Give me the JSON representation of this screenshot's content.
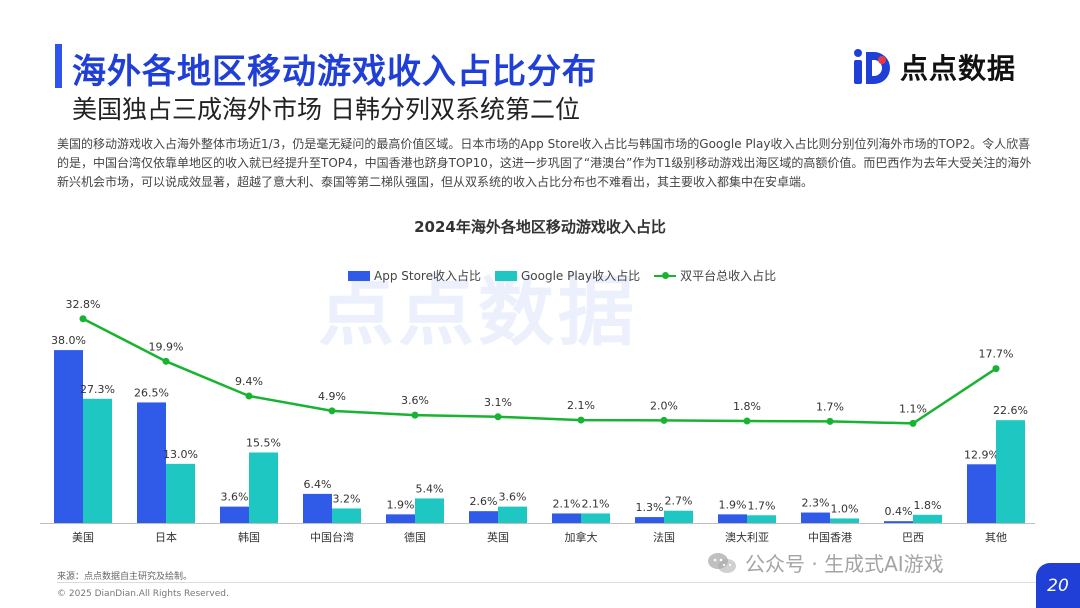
{
  "header": {
    "title": "海外各地区移动游戏收入占比分布",
    "subtitle": "美国独占三成海外市场 日韩分列双系统第二位",
    "brand_name": "点点数据"
  },
  "intro_text": "美国的移动游戏收入占海外整体市场近1/3，仍是毫无疑问的最高价值区域。日本市场的App Store收入占比与韩国市场的Google Play收入占比则分别位列海外市场的TOP2。令人欣喜的是，中国台湾仅依靠单地区的收入就已经提升至TOP4，中国香港也跻身TOP10，这进一步巩固了“港澳台”作为T1级别移动游戏出海区域的高额价值。而巴西作为去年大受关注的海外新兴机会市场，可以说成效显著，超越了意大利、泰国等第二梯队强国，但从双系统的收入占比分布也不难看出，其主要收入都集中在安卓端。",
  "watermark_text": "点点数据",
  "chart_data": {
    "type": "bar",
    "title": "2024年海外各地区移动游戏收入占比",
    "categories": [
      "美国",
      "日本",
      "韩国",
      "中国台湾",
      "德国",
      "英国",
      "加拿大",
      "法国",
      "澳大利亚",
      "中国香港",
      "巴西",
      "其他"
    ],
    "series": [
      {
        "name": "App Store收入占比",
        "type": "bar",
        "values": [
          38.0,
          26.5,
          3.6,
          6.4,
          1.9,
          2.6,
          2.1,
          1.3,
          1.9,
          2.3,
          0.4,
          12.9
        ],
        "color": "#2f5be8"
      },
      {
        "name": "Google Play收入占比",
        "type": "bar",
        "values": [
          27.3,
          13.0,
          15.5,
          3.2,
          5.4,
          3.6,
          2.1,
          2.7,
          1.7,
          1.0,
          1.8,
          22.6
        ],
        "color": "#1fc7c3"
      },
      {
        "name": "双平台总收入占比",
        "type": "line",
        "values": [
          32.8,
          19.9,
          9.4,
          4.9,
          3.6,
          3.1,
          2.1,
          2.0,
          1.8,
          1.7,
          1.1,
          17.7
        ],
        "color": "#18b331"
      }
    ],
    "unit": "%",
    "legend_position": "top",
    "grid": false
  },
  "source_text": "来源：点点数据自主研究及绘制。",
  "copyright_text": "© 2025 DianDian.All Rights Reserved.",
  "footer_watermark": "公众号 · 生成式AI游戏",
  "page_number": "20"
}
